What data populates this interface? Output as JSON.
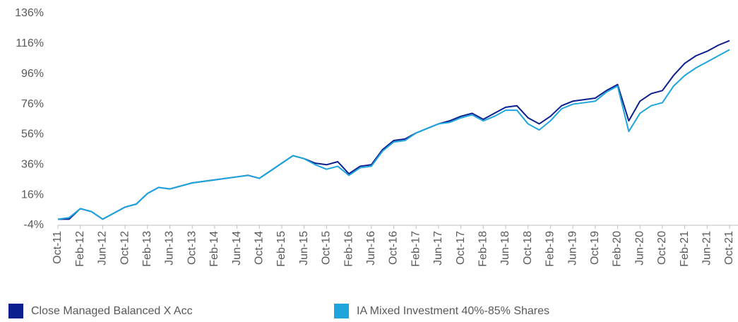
{
  "chart_data": {
    "type": "line",
    "categories": [
      "Oct-11",
      null,
      "Feb-12",
      null,
      "Jun-12",
      null,
      "Oct-12",
      null,
      "Feb-13",
      null,
      "Jun-13",
      null,
      "Oct-13",
      null,
      "Feb-14",
      null,
      "Jun-14",
      null,
      "Oct-14",
      null,
      "Feb-15",
      null,
      "Jun-15",
      null,
      "Oct-15",
      null,
      "Feb-16",
      null,
      "Jun-16",
      null,
      "Oct-16",
      null,
      "Feb-17",
      null,
      "Jun-17",
      null,
      "Oct-17",
      null,
      "Feb-18",
      null,
      "Jun-18",
      null,
      "Oct-18",
      null,
      "Feb-19",
      null,
      "Jun-19",
      null,
      "Oct-19",
      null,
      "Feb-20",
      null,
      "Jun-20",
      null,
      "Oct-20",
      null,
      "Feb-21",
      null,
      "Jun-21",
      null,
      "Oct-21"
    ],
    "series": [
      {
        "name": "Close Managed Balanced X Acc",
        "color": "#0b1f8f",
        "values": [
          0,
          0,
          7,
          5,
          0,
          4,
          8,
          10,
          17,
          21,
          20,
          22,
          24,
          25,
          26,
          27,
          28,
          29,
          27,
          32,
          37,
          42,
          40,
          37,
          36,
          38,
          30,
          35,
          36,
          46,
          52,
          53,
          57,
          60,
          63,
          65,
          68,
          70,
          66,
          70,
          74,
          75,
          67,
          63,
          68,
          75,
          78,
          79,
          80,
          85,
          89,
          65,
          78,
          83,
          85,
          95,
          103,
          108,
          111,
          115,
          118
        ]
      },
      {
        "name": "IA Mixed Investment 40%-85% Shares",
        "color": "#1ea5de",
        "values": [
          0,
          1,
          7,
          5,
          0,
          4,
          8,
          10,
          17,
          21,
          20,
          22,
          24,
          25,
          26,
          27,
          28,
          29,
          27,
          32,
          37,
          42,
          40,
          36,
          33,
          35,
          29,
          34,
          35,
          45,
          51,
          52,
          57,
          60,
          63,
          64,
          67,
          69,
          65,
          68,
          72,
          72,
          63,
          59,
          65,
          73,
          76,
          77,
          78,
          84,
          88,
          58,
          70,
          75,
          77,
          88,
          95,
          100,
          104,
          108,
          112
        ]
      }
    ],
    "ylim": [
      -4,
      136
    ],
    "yticks": [
      {
        "value": -4,
        "label": "-4%"
      },
      {
        "value": 16,
        "label": "16%"
      },
      {
        "value": 36,
        "label": "36%"
      },
      {
        "value": 56,
        "label": "56%"
      },
      {
        "value": 76,
        "label": "76%"
      },
      {
        "value": 96,
        "label": "96%"
      },
      {
        "value": 116,
        "label": "116%"
      },
      {
        "value": 136,
        "label": "136%"
      }
    ],
    "legend": "bottom"
  }
}
